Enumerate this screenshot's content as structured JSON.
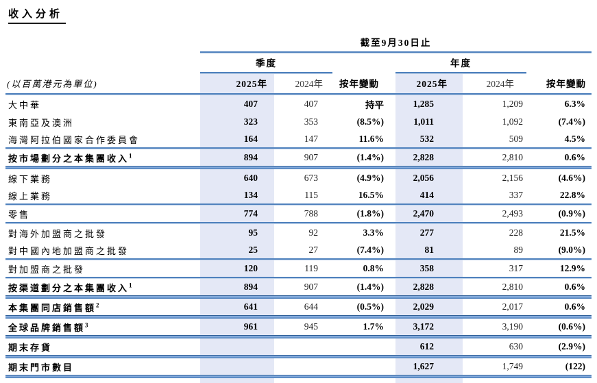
{
  "title": "收入分析",
  "table": {
    "caption": "截至9月30日止",
    "unit_label": "(以百萬港元為單位)",
    "groups": {
      "quarter": "季度",
      "year": "年度"
    },
    "columns": [
      "2025年",
      "2024年",
      "按年變動",
      "2025年",
      "2024年",
      "按年變動"
    ],
    "colors": {
      "shade": "#e4e8f6",
      "rule": "#4f81bd",
      "rule_light": "#b8cce4"
    },
    "rows": [
      {
        "label": "大中華",
        "sup": "",
        "bold": false,
        "sep": "none",
        "values": [
          "407",
          "407",
          "持平",
          "1,285",
          "1,209",
          "6.3%"
        ]
      },
      {
        "label": "東南亞及澳洲",
        "sup": "",
        "bold": false,
        "sep": "none",
        "values": [
          "323",
          "353",
          "(8.5%)",
          "1,011",
          "1,092",
          "(7.4%)"
        ]
      },
      {
        "label": "海灣阿拉伯國家合作委員會",
        "sup": "",
        "bold": false,
        "sep": "thin",
        "values": [
          "164",
          "147",
          "11.6%",
          "532",
          "509",
          "4.5%"
        ]
      },
      {
        "label": "按市場劃分之本集團收入",
        "sup": "1",
        "bold": true,
        "sep": "thick",
        "values": [
          "894",
          "907",
          "(1.4%)",
          "2,828",
          "2,810",
          "0.6%"
        ]
      },
      {
        "label": "線下業務",
        "sup": "",
        "bold": false,
        "sep": "none",
        "values": [
          "640",
          "673",
          "(4.9%)",
          "2,056",
          "2,156",
          "(4.6%)"
        ]
      },
      {
        "label": "線上業務",
        "sup": "",
        "bold": false,
        "sep": "thin",
        "values": [
          "134",
          "115",
          "16.5%",
          "414",
          "337",
          "22.8%"
        ]
      },
      {
        "label": "零售",
        "sup": "",
        "bold": false,
        "sep": "thin",
        "values": [
          "774",
          "788",
          "(1.8%)",
          "2,470",
          "2,493",
          "(0.9%)"
        ]
      },
      {
        "label": "對海外加盟商之批發",
        "sup": "",
        "bold": false,
        "sep": "none",
        "values": [
          "95",
          "92",
          "3.3%",
          "277",
          "228",
          "21.5%"
        ]
      },
      {
        "label": "對中國內地加盟商之批發",
        "sup": "",
        "bold": false,
        "sep": "thin",
        "values": [
          "25",
          "27",
          "(7.4%)",
          "81",
          "89",
          "(9.0%)"
        ]
      },
      {
        "label": "對加盟商之批發",
        "sup": "",
        "bold": false,
        "sep": "thin",
        "values": [
          "120",
          "119",
          "0.8%",
          "358",
          "317",
          "12.9%"
        ]
      },
      {
        "label": "按渠道劃分之本集團收入",
        "sup": "1",
        "bold": true,
        "sep": "thick",
        "values": [
          "894",
          "907",
          "(1.4%)",
          "2,828",
          "2,810",
          "0.6%"
        ]
      },
      {
        "label": "本集團同店銷售額",
        "sup": "2",
        "bold": true,
        "sep": "thick",
        "values": [
          "641",
          "644",
          "(0.5%)",
          "2,029",
          "2,017",
          "0.6%"
        ]
      },
      {
        "label": "全球品牌銷售額",
        "sup": "3",
        "bold": true,
        "sep": "thick",
        "values": [
          "961",
          "945",
          "1.7%",
          "3,172",
          "3,190",
          "(0.6%)"
        ]
      },
      {
        "label": "期末存貨",
        "sup": "",
        "bold": true,
        "sep": "thick",
        "values": [
          "",
          "",
          "",
          "612",
          "630",
          "(2.9%)"
        ]
      },
      {
        "label": "期末門市數目",
        "sup": "",
        "bold": true,
        "sep": "thick",
        "values": [
          "",
          "",
          "",
          "1,627",
          "1,749",
          "(122)"
        ]
      }
    ]
  }
}
